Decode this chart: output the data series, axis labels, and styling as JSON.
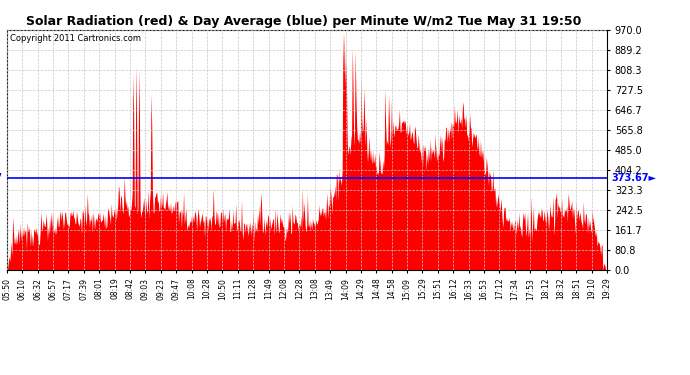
{
  "title": "Solar Radiation (red) & Day Average (blue) per Minute W/m2 Tue May 31 19:50",
  "copyright_text": "Copyright 2011 Cartronics.com",
  "day_average": 373.67,
  "y_max": 970.0,
  "y_min": 0.0,
  "y_ticks": [
    0.0,
    80.8,
    161.7,
    242.5,
    323.3,
    404.2,
    485.0,
    565.8,
    646.7,
    727.5,
    808.3,
    889.2,
    970.0
  ],
  "fill_color": "#FF0000",
  "line_color": "#0000FF",
  "background_color": "#FFFFFF",
  "grid_color": "#C8C8C8",
  "x_labels": [
    "05:50",
    "06:10",
    "06:32",
    "06:57",
    "07:17",
    "07:39",
    "08:01",
    "08:19",
    "08:42",
    "09:03",
    "09:23",
    "09:47",
    "10:08",
    "10:28",
    "10:50",
    "11:11",
    "11:28",
    "11:49",
    "12:08",
    "12:28",
    "13:08",
    "13:49",
    "14:09",
    "14:29",
    "14:48",
    "14:58",
    "15:09",
    "15:29",
    "15:51",
    "16:12",
    "16:33",
    "16:53",
    "17:12",
    "17:34",
    "17:53",
    "18:12",
    "18:32",
    "18:51",
    "19:10",
    "19:29"
  ],
  "num_points": 830
}
